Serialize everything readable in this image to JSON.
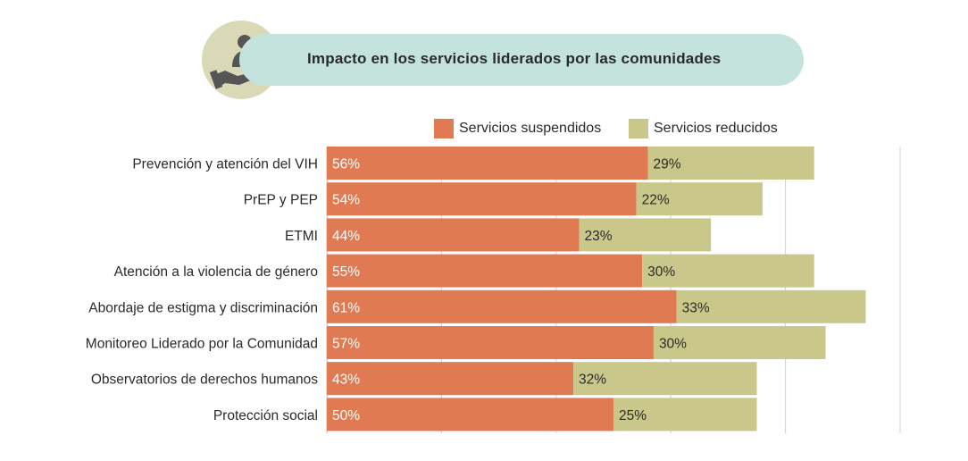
{
  "header": {
    "title": "Impacto en los servicios liderados por las comunidades",
    "icon": "hand-holding-person-heart-icon"
  },
  "colors": {
    "suspended": "#e07a52",
    "reduced": "#c9c88a",
    "header_bg": "#c3e3dc",
    "icon_bg": "#d9d9b8",
    "icon_fg": "#555555"
  },
  "chart_data": {
    "type": "bar",
    "orientation": "horizontal",
    "stacked": true,
    "legend_position": "top-right",
    "grid": true,
    "categories": [
      "Prevención y atención del VIH",
      "PrEP y PEP",
      "ETMI",
      "Atención a la violencia de género",
      "Abordaje de estigma y discriminación",
      "Monitoreo Liderado por la Comunidad",
      "Observatorios de derechos humanos",
      "Protección social"
    ],
    "series": [
      {
        "name": "Servicios suspendidos",
        "values": [
          56,
          54,
          44,
          55,
          61,
          57,
          43,
          50
        ],
        "labels": [
          "56%",
          "54%",
          "44%",
          "55%",
          "61%",
          "57%",
          "43%",
          "50%"
        ]
      },
      {
        "name": "Servicios reducidos",
        "values": [
          29,
          22,
          23,
          30,
          33,
          30,
          32,
          25
        ],
        "labels": [
          "29%",
          "22%",
          "23%",
          "30%",
          "33%",
          "30%",
          "32%",
          "25%"
        ]
      }
    ],
    "xlim": [
      0,
      100
    ]
  }
}
